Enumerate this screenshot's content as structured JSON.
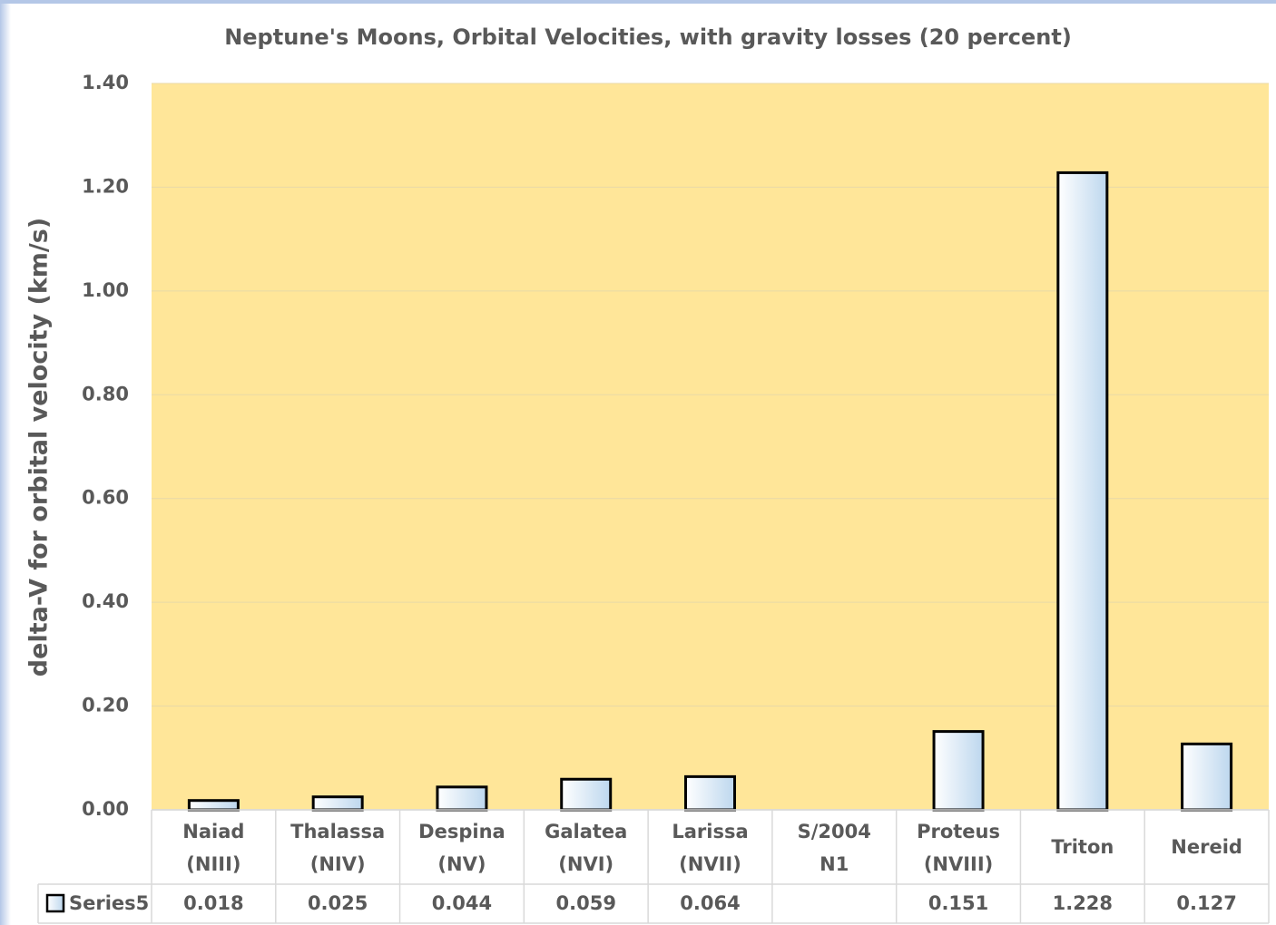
{
  "chart_data": {
    "type": "bar",
    "title": "Neptune's Moons, Orbital Velocities, with gravity losses (20 percent)",
    "y_label": "delta-V for orbital velocity (km/s)",
    "categories": [
      [
        "Naiad",
        "(NIII)"
      ],
      [
        "Thalassa",
        "(NIV)"
      ],
      [
        "Despina",
        "(NV)"
      ],
      [
        "Galatea",
        "(NVI)"
      ],
      [
        "Larissa",
        "(NVII)"
      ],
      [
        "S/2004",
        "N1"
      ],
      [
        "Proteus",
        "(NVIII)"
      ],
      [
        "Triton"
      ],
      [
        "Nereid"
      ]
    ],
    "series": [
      {
        "name": "Series5",
        "color": "#bdd7ee",
        "values": [
          0.018,
          0.025,
          0.044,
          0.059,
          0.064,
          null,
          0.151,
          1.228,
          0.127
        ]
      }
    ],
    "ylim": [
      0,
      1.4
    ],
    "yticks": [
      {
        "value": 0,
        "label": "0.00"
      },
      {
        "value": 0.2,
        "label": "0.20"
      },
      {
        "value": 0.4,
        "label": "0.40"
      },
      {
        "value": 0.6,
        "label": "0.60"
      },
      {
        "value": 0.8,
        "label": "0.80"
      },
      {
        "value": 1,
        "label": "1.00"
      },
      {
        "value": 1.2,
        "label": "1.20"
      },
      {
        "value": 1.4,
        "label": "1.40"
      }
    ],
    "grid": true,
    "data_table": true
  }
}
